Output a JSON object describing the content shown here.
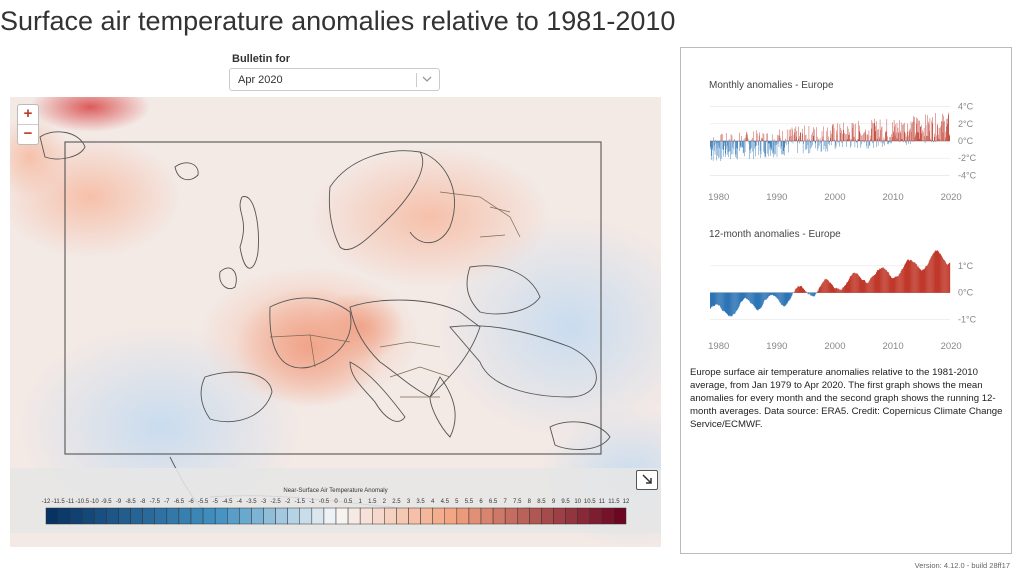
{
  "page": {
    "title": "Surface air temperature anomalies relative to 1981-2010"
  },
  "bulletin": {
    "label": "Bulletin for",
    "value": "Apr 2020",
    "icon": "chevron-down-icon"
  },
  "map": {
    "zoom_in": "+",
    "zoom_out": "−",
    "expand_icon": "arrow-down-right-icon",
    "legend": {
      "title": "Near-Surface Air Temperature Anomaly",
      "labels": [
        "-12",
        "-11.5",
        "-11",
        "-10.5",
        "-10",
        "-9.5",
        "-9",
        "-8.5",
        "-8",
        "-7.5",
        "-7",
        "-6.5",
        "-6",
        "-5.5",
        "-5",
        "-4.5",
        "-4",
        "-3.5",
        "-3",
        "-2.5",
        "-2",
        "-1.5",
        "-1",
        "-0.5",
        "0",
        "0.5",
        "1",
        "1.5",
        "2",
        "2.5",
        "3",
        "3.5",
        "4",
        "4.5",
        "5",
        "5.5",
        "6",
        "6.5",
        "7",
        "7.5",
        "8",
        "8.5",
        "9",
        "9.5",
        "10",
        "10.5",
        "11",
        "11.5",
        "12"
      ],
      "colors": {
        "cold": "#053061",
        "mid_cold": "#4393c3",
        "neutral": "#f7f7f7",
        "mid_warm": "#f4a582",
        "hot": "#67001f"
      }
    }
  },
  "charts": {
    "monthly": {
      "title": "Monthly anomalies - Europe",
      "chart_data": {
        "type": "bar",
        "x_range": [
          1979,
          2020.3
        ],
        "ylim": [
          -5,
          5
        ],
        "y_ticks": [
          "4°C",
          "2°C",
          "0°C",
          "-2°C",
          "-4°C"
        ],
        "x_ticks": [
          "1980",
          "1990",
          "2000",
          "2010",
          "2020"
        ],
        "colors": {
          "positive": "#c0392b",
          "negative": "#2e75b6"
        }
      }
    },
    "twelve_month": {
      "title": "12-month anomalies - Europe",
      "chart_data": {
        "type": "area",
        "x_range": [
          1979,
          2020.3
        ],
        "ylim": [
          -1.5,
          1.7
        ],
        "y_ticks": [
          "1°C",
          "0°C",
          "-1°C"
        ],
        "x_ticks": [
          "1980",
          "1990",
          "2000",
          "2010",
          "2020"
        ],
        "colors": {
          "positive": "#c0392b",
          "negative": "#2e75b6"
        }
      }
    }
  },
  "caption": "Europe surface air temperature anomalies relative to the 1981-2010 average, from Jan 1979 to Apr 2020. The first graph shows the mean anomalies for every month and the second graph shows the running 12-month averages. Data source: ERA5. Credit: Copernicus Climate Change Service/ECMWF.",
  "version": "Version: 4.12.0 - build 28ff17"
}
